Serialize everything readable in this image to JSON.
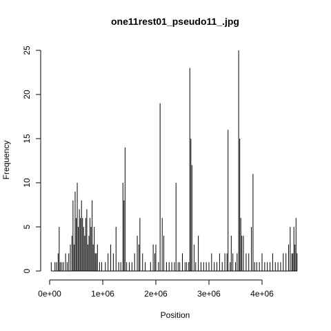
{
  "chart_data": {
    "type": "bar",
    "title": "one11rest01_pseudo11_.jpg",
    "xlabel": "Position",
    "ylabel": "Frequency",
    "xlim": [
      0,
      4700000
    ],
    "ylim": [
      0,
      25
    ],
    "xticks": [
      {
        "value": 0,
        "label": "0e+00"
      },
      {
        "value": 1000000,
        "label": "1e+06"
      },
      {
        "value": 2000000,
        "label": "2e+06"
      },
      {
        "value": 3000000,
        "label": "3e+06"
      },
      {
        "value": 4000000,
        "label": "4e+06"
      }
    ],
    "yticks": [
      {
        "value": 0,
        "label": "0"
      },
      {
        "value": 5,
        "label": "5"
      },
      {
        "value": 10,
        "label": "10"
      },
      {
        "value": 15,
        "label": "15"
      },
      {
        "value": 20,
        "label": "20"
      },
      {
        "value": 25,
        "label": "25"
      }
    ],
    "grid": false,
    "legend": "none",
    "x": [
      30000,
      100000,
      130000,
      160000,
      180000,
      200000,
      230000,
      260000,
      300000,
      330000,
      360000,
      390000,
      420000,
      440000,
      460000,
      480000,
      500000,
      520000,
      540000,
      560000,
      580000,
      600000,
      620000,
      640000,
      660000,
      680000,
      700000,
      720000,
      740000,
      760000,
      780000,
      800000,
      820000,
      840000,
      860000,
      880000,
      900000,
      940000,
      980000,
      1050000,
      1100000,
      1150000,
      1200000,
      1250000,
      1300000,
      1340000,
      1380000,
      1400000,
      1420000,
      1450000,
      1500000,
      1550000,
      1600000,
      1650000,
      1680000,
      1700000,
      1750000,
      1800000,
      1900000,
      1950000,
      1980000,
      2000000,
      2050000,
      2080000,
      2120000,
      2150000,
      2200000,
      2250000,
      2300000,
      2350000,
      2380000,
      2420000,
      2450000,
      2500000,
      2550000,
      2580000,
      2620000,
      2640000,
      2660000,
      2680000,
      2720000,
      2750000,
      2800000,
      2850000,
      2900000,
      2950000,
      3000000,
      3050000,
      3100000,
      3150000,
      3200000,
      3250000,
      3300000,
      3340000,
      3360000,
      3400000,
      3420000,
      3450000,
      3500000,
      3530000,
      3560000,
      3580000,
      3600000,
      3620000,
      3650000,
      3700000,
      3750000,
      3800000,
      3830000,
      3860000,
      3900000,
      3950000,
      4000000,
      4050000,
      4100000,
      4150000,
      4200000,
      4250000,
      4300000,
      4350000,
      4400000,
      4450000,
      4500000,
      4530000,
      4560000,
      4580000,
      4600000,
      4620000,
      4640000,
      4660000
    ],
    "values": [
      1,
      1,
      1,
      2,
      5,
      1,
      1,
      1,
      2,
      1,
      2,
      3,
      4,
      8,
      3,
      9,
      6,
      10,
      5,
      7,
      6,
      8,
      6,
      5,
      4,
      6,
      7,
      3,
      4,
      6,
      5,
      8,
      3,
      5,
      2,
      2,
      3,
      1,
      1,
      1,
      2,
      3,
      2,
      5,
      1,
      1,
      10,
      8,
      14,
      1,
      1,
      1,
      2,
      4,
      3,
      6,
      2,
      1,
      1,
      3,
      2,
      3,
      1,
      19,
      6,
      4,
      1,
      1,
      1,
      1,
      10,
      1,
      1,
      2,
      1,
      1,
      1,
      23,
      15,
      12,
      3,
      1,
      4,
      1,
      1,
      1,
      1,
      2,
      1,
      1,
      2,
      1,
      2,
      2,
      16,
      1,
      4,
      2,
      1,
      2,
      25,
      15,
      6,
      4,
      4,
      2,
      2,
      5,
      11,
      1,
      1,
      1,
      2,
      1,
      1,
      1,
      2,
      1,
      1,
      1,
      2,
      2,
      3,
      5,
      2,
      2,
      5,
      3,
      6,
      2
    ]
  }
}
